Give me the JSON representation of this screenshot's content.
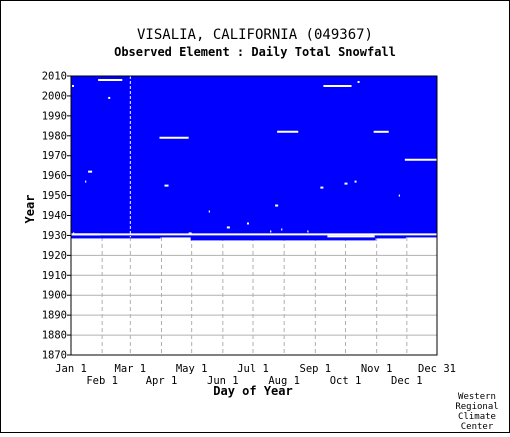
{
  "chart_data": {
    "type": "heatmap",
    "title": "VISALIA, CALIFORNIA   (049367)",
    "subtitle": "Observed Element : Daily Total Snowfall",
    "xlabel": "Day of Year",
    "ylabel": "Year",
    "xlim": [
      1,
      365
    ],
    "ylim": [
      1870,
      2010
    ],
    "x_ticks_upper": [
      {
        "day": 1,
        "label": "Jan 1"
      },
      {
        "day": 60,
        "label": "Mar 1"
      },
      {
        "day": 121,
        "label": "May 1"
      },
      {
        "day": 182,
        "label": "Jul 1"
      },
      {
        "day": 244,
        "label": "Sep 1"
      },
      {
        "day": 305,
        "label": "Nov 1"
      },
      {
        "day": 365,
        "label": "Dec 31"
      }
    ],
    "x_ticks_lower": [
      {
        "day": 32,
        "label": "Feb 1"
      },
      {
        "day": 91,
        "label": "Apr 1"
      },
      {
        "day": 152,
        "label": "Jun 1"
      },
      {
        "day": 213,
        "label": "Aug 1"
      },
      {
        "day": 274,
        "label": "Oct 1"
      },
      {
        "day": 335,
        "label": "Dec 1"
      }
    ],
    "y_ticks": [
      1870,
      1880,
      1890,
      1900,
      1910,
      1920,
      1930,
      1940,
      1950,
      1960,
      1970,
      1980,
      1990,
      2000,
      2010
    ],
    "grid": true,
    "colors": {
      "observed": "#0000ff",
      "missing": "#ffffff"
    },
    "coverage_periods": [
      {
        "start": 1929,
        "end": 2010,
        "day_start": 1,
        "day_end": 365,
        "status": "observed"
      }
    ],
    "start_boundary": [
      {
        "day_start": 1,
        "day_end": 30,
        "year": 1928.5
      },
      {
        "day_start": 30,
        "day_end": 59,
        "year": 1928.5
      },
      {
        "day_start": 59,
        "day_end": 90,
        "year": 1928.5
      },
      {
        "day_start": 90,
        "day_end": 120,
        "year": 1930
      },
      {
        "day_start": 120,
        "day_end": 273,
        "year": 1927.5
      },
      {
        "day_start": 273,
        "day_end": 304,
        "year": 1927.5
      },
      {
        "day_start": 304,
        "day_end": 334,
        "year": 1928.5
      },
      {
        "day_start": 334,
        "day_end": 365,
        "year": 1930
      }
    ],
    "missing_segments": [
      {
        "year": 2008,
        "day_start": 28,
        "day_end": 52
      },
      {
        "year": 2005,
        "day_start": 2,
        "day_end": 4
      },
      {
        "year": 2005,
        "day_start": 252,
        "day_end": 280
      },
      {
        "year": 2007,
        "day_start": 286,
        "day_end": 288
      },
      {
        "year": 1999,
        "day_start": 38,
        "day_end": 40
      },
      {
        "year": 1982,
        "day_start": 206,
        "day_end": 227
      },
      {
        "year": 1982,
        "day_start": 302,
        "day_end": 317
      },
      {
        "year": 1979,
        "day_start": 89,
        "day_end": 118
      },
      {
        "year": 1968,
        "day_start": 333,
        "day_end": 365
      },
      {
        "year": 1962,
        "day_start": 18,
        "day_end": 22
      },
      {
        "year": 1957,
        "day_start": 15,
        "day_end": 16
      },
      {
        "year": 1957,
        "day_start": 283,
        "day_end": 285
      },
      {
        "year": 1956,
        "day_start": 273,
        "day_end": 276
      },
      {
        "year": 1955,
        "day_start": 94,
        "day_end": 98
      },
      {
        "year": 1954,
        "day_start": 249,
        "day_end": 252
      },
      {
        "year": 1950,
        "day_start": 327,
        "day_end": 328
      },
      {
        "year": 1945,
        "day_start": 204,
        "day_end": 207
      },
      {
        "year": 1942,
        "day_start": 138,
        "day_end": 139
      },
      {
        "year": 1936,
        "day_start": 176,
        "day_end": 178
      },
      {
        "year": 1934,
        "day_start": 156,
        "day_end": 159
      },
      {
        "year": 1933,
        "day_start": 210,
        "day_end": 211
      },
      {
        "year": 1932,
        "day_start": 199,
        "day_end": 200
      },
      {
        "year": 1932,
        "day_start": 236,
        "day_end": 237
      },
      {
        "year": 1931,
        "day_start": 3,
        "day_end": 4
      },
      {
        "year": 1931,
        "day_start": 118,
        "day_end": 121
      },
      {
        "year": 1930.5,
        "day_start": 1,
        "day_end": 365
      },
      {
        "year": 1930.5,
        "day_start": 1,
        "day_end": 30,
        "segment": "a"
      },
      {
        "year": 1929.5,
        "day_start": 256,
        "day_end": 303
      }
    ]
  },
  "footer": {
    "credit_lines": [
      "Western",
      "Regional",
      "Climate",
      "Center"
    ]
  }
}
